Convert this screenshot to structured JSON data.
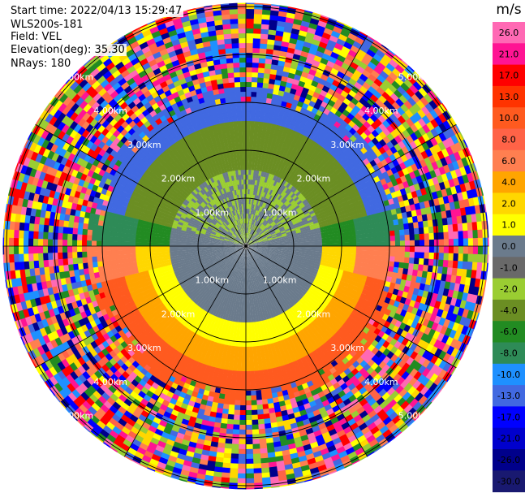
{
  "header": {
    "start_time": "Start time: 2022/04/13 15:29:47",
    "station": "WLS200s-181",
    "field": "Field: VEL",
    "elevation": "Elevation(deg): 35.30",
    "nrays": "NRays: 180"
  },
  "range_rings": {
    "units": "km",
    "labels": [
      "1.00km",
      "2.00km",
      "3.00km",
      "4.00km",
      "5.00km"
    ]
  },
  "colorbar": {
    "unit": "m/s",
    "ticks": [
      "26.0",
      "21.0",
      "17.0",
      "13.0",
      "10.0",
      "8.0",
      "6.0",
      "4.0",
      "2.0",
      "1.0",
      "0.0",
      "-1.0",
      "-2.0",
      "-4.0",
      "-6.0",
      "-8.0",
      "-10.0",
      "-13.0",
      "-17.0",
      "-21.0",
      "-26.0",
      "-30.0"
    ],
    "colors": [
      "#ff69b4",
      "#ff1493",
      "#ff0000",
      "#ff3300",
      "#ff5a1f",
      "#ff6347",
      "#ff7f50",
      "#ffa500",
      "#ffd700",
      "#ffff00",
      "#6b7b8c",
      "#696969",
      "#9acd32",
      "#6b8e23",
      "#228b22",
      "#2e8b57",
      "#1e90ff",
      "#4169e1",
      "#0000ff",
      "#0000cd",
      "#00008b",
      "#191970"
    ]
  }
}
